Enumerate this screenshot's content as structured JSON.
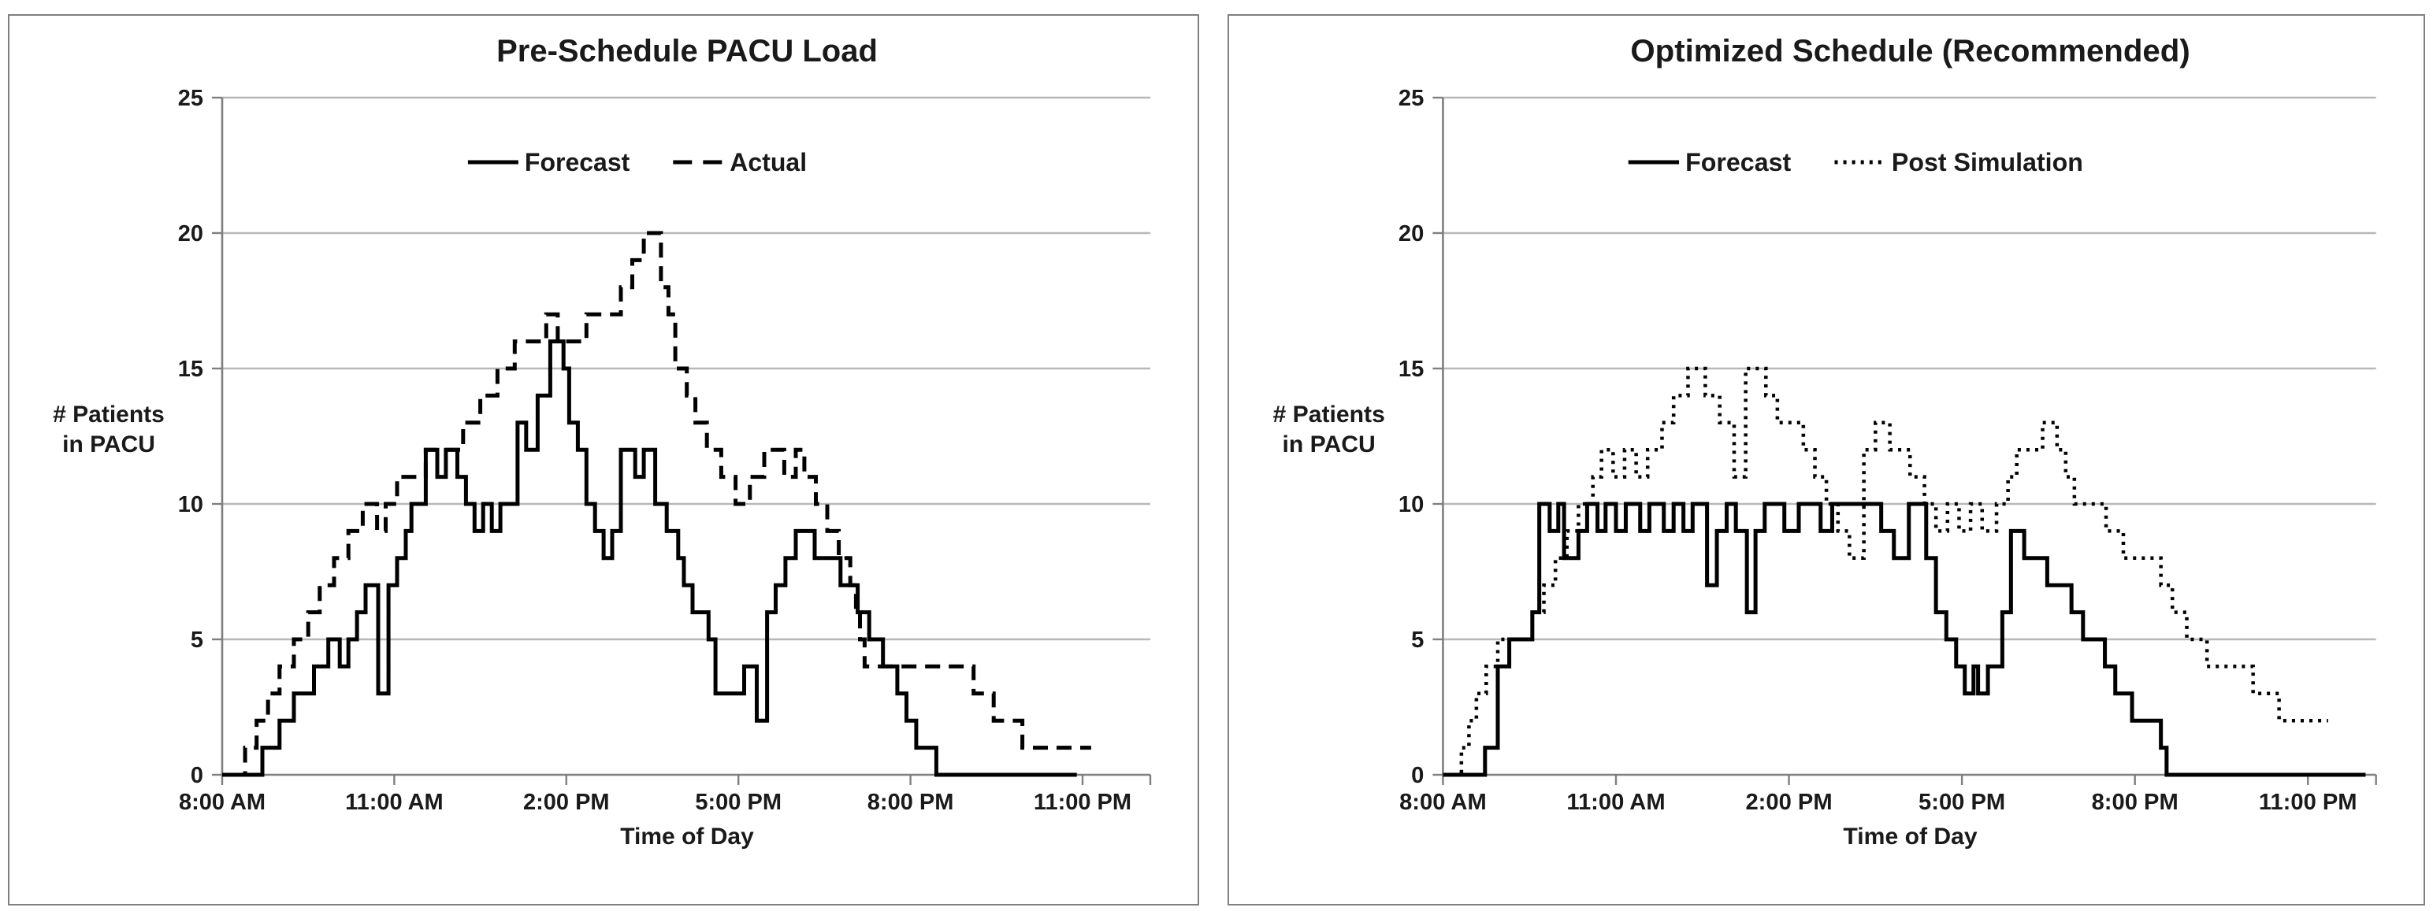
{
  "page": {
    "background": "#ffffff"
  },
  "colors": {
    "series_line": "#000000",
    "gridline": "#b8b8b8",
    "axis": "#7f7f7f",
    "text": "#1a1a1a",
    "panel_border": "#7f7f7f",
    "background": "#ffffff"
  },
  "chart_data": [
    {
      "type": "line",
      "title": "Pre-Schedule PACU Load",
      "ylabel_lines": [
        "# Patients",
        "in PACU"
      ],
      "xlabel": "Time of Day",
      "ylim": [
        0,
        25
      ],
      "y_ticks": [
        0,
        5,
        10,
        15,
        20,
        25
      ],
      "x_range_hours": [
        8,
        24.2
      ],
      "x_ticks": [
        {
          "hour": 8,
          "label": "8:00 AM"
        },
        {
          "hour": 11,
          "label": "11:00 AM"
        },
        {
          "hour": 14,
          "label": "2:00 PM"
        },
        {
          "hour": 17,
          "label": "5:00 PM"
        },
        {
          "hour": 20,
          "label": "8:00 PM"
        },
        {
          "hour": 23,
          "label": "11:00 PM"
        }
      ],
      "grid": true,
      "legend_position": "top-center",
      "series": [
        {
          "name": "Forecast",
          "style": "solid",
          "points": [
            [
              8,
              0
            ],
            [
              8.7,
              1
            ],
            [
              9.0,
              2
            ],
            [
              9.25,
              3
            ],
            [
              9.6,
              4
            ],
            [
              9.85,
              5
            ],
            [
              10.05,
              4
            ],
            [
              10.2,
              5
            ],
            [
              10.35,
              6
            ],
            [
              10.5,
              7
            ],
            [
              10.72,
              3
            ],
            [
              10.9,
              7
            ],
            [
              11.05,
              8
            ],
            [
              11.2,
              9
            ],
            [
              11.3,
              10
            ],
            [
              11.55,
              12
            ],
            [
              11.75,
              11
            ],
            [
              11.9,
              12
            ],
            [
              12.1,
              11
            ],
            [
              12.25,
              10
            ],
            [
              12.4,
              9
            ],
            [
              12.55,
              10
            ],
            [
              12.7,
              9
            ],
            [
              12.85,
              10
            ],
            [
              13.15,
              13
            ],
            [
              13.3,
              12
            ],
            [
              13.5,
              14
            ],
            [
              13.72,
              16
            ],
            [
              13.95,
              15
            ],
            [
              14.05,
              13
            ],
            [
              14.2,
              12
            ],
            [
              14.35,
              10
            ],
            [
              14.5,
              9
            ],
            [
              14.65,
              8
            ],
            [
              14.8,
              9
            ],
            [
              14.95,
              12
            ],
            [
              15.2,
              11
            ],
            [
              15.35,
              12
            ],
            [
              15.55,
              10
            ],
            [
              15.75,
              9
            ],
            [
              15.95,
              8
            ],
            [
              16.05,
              7
            ],
            [
              16.2,
              6
            ],
            [
              16.48,
              5
            ],
            [
              16.6,
              3
            ],
            [
              17.1,
              4
            ],
            [
              17.32,
              2
            ],
            [
              17.5,
              6
            ],
            [
              17.65,
              7
            ],
            [
              17.82,
              8
            ],
            [
              18.0,
              9
            ],
            [
              18.33,
              8
            ],
            [
              18.78,
              7
            ],
            [
              19.08,
              6
            ],
            [
              19.28,
              5
            ],
            [
              19.52,
              4
            ],
            [
              19.77,
              3
            ],
            [
              19.93,
              2
            ],
            [
              20.1,
              1
            ],
            [
              20.45,
              0
            ],
            [
              22.9,
              0
            ]
          ]
        },
        {
          "name": "Actual",
          "style": "dashed",
          "points": [
            [
              8.2,
              0
            ],
            [
              8.4,
              1
            ],
            [
              8.6,
              2
            ],
            [
              8.8,
              3
            ],
            [
              9.0,
              4
            ],
            [
              9.25,
              5
            ],
            [
              9.5,
              6
            ],
            [
              9.7,
              7
            ],
            [
              9.95,
              8
            ],
            [
              10.2,
              9
            ],
            [
              10.45,
              10
            ],
            [
              10.7,
              9
            ],
            [
              10.85,
              10
            ],
            [
              11.05,
              11
            ],
            [
              11.4,
              11
            ],
            [
              11.55,
              12
            ],
            [
              11.95,
              12
            ],
            [
              12.2,
              13
            ],
            [
              12.5,
              14
            ],
            [
              12.8,
              15
            ],
            [
              13.1,
              16
            ],
            [
              13.45,
              16
            ],
            [
              13.65,
              17
            ],
            [
              13.85,
              16
            ],
            [
              14.15,
              16
            ],
            [
              14.35,
              17
            ],
            [
              14.7,
              17
            ],
            [
              14.95,
              18
            ],
            [
              15.15,
              19
            ],
            [
              15.35,
              20
            ],
            [
              15.55,
              20
            ],
            [
              15.65,
              18
            ],
            [
              15.78,
              17
            ],
            [
              15.9,
              15
            ],
            [
              16.1,
              14
            ],
            [
              16.25,
              13
            ],
            [
              16.45,
              12
            ],
            [
              16.7,
              11
            ],
            [
              16.95,
              10
            ],
            [
              17.2,
              11
            ],
            [
              17.45,
              12
            ],
            [
              17.8,
              11
            ],
            [
              18.0,
              12
            ],
            [
              18.15,
              11
            ],
            [
              18.35,
              10
            ],
            [
              18.55,
              9
            ],
            [
              18.75,
              8
            ],
            [
              18.95,
              7
            ],
            [
              19.05,
              6
            ],
            [
              19.12,
              5
            ],
            [
              19.2,
              4
            ],
            [
              20.9,
              4
            ],
            [
              21.1,
              3
            ],
            [
              21.45,
              2
            ],
            [
              21.95,
              1
            ],
            [
              23.15,
              1
            ]
          ]
        }
      ]
    },
    {
      "type": "line",
      "title": "Optimized Schedule (Recommended)",
      "ylabel_lines": [
        "# Patients",
        "in PACU"
      ],
      "xlabel": "Time of  Day",
      "ylim": [
        0,
        25
      ],
      "y_ticks": [
        0,
        5,
        10,
        15,
        20,
        25
      ],
      "x_range_hours": [
        8,
        24.2
      ],
      "x_ticks": [
        {
          "hour": 8,
          "label": "8:00 AM"
        },
        {
          "hour": 11,
          "label": "11:00 AM"
        },
        {
          "hour": 14,
          "label": "2:00 PM"
        },
        {
          "hour": 17,
          "label": "5:00 PM"
        },
        {
          "hour": 20,
          "label": "8:00 PM"
        },
        {
          "hour": 23,
          "label": "11:00 PM"
        }
      ],
      "grid": true,
      "legend_position": "top-center",
      "series": [
        {
          "name": "Forecast",
          "style": "solid",
          "points": [
            [
              8,
              0
            ],
            [
              8.73,
              1
            ],
            [
              8.95,
              4
            ],
            [
              9.15,
              5
            ],
            [
              9.55,
              6
            ],
            [
              9.67,
              10
            ],
            [
              9.85,
              9
            ],
            [
              10.0,
              10
            ],
            [
              10.1,
              8
            ],
            [
              10.35,
              9
            ],
            [
              10.5,
              10
            ],
            [
              10.68,
              9
            ],
            [
              10.82,
              10
            ],
            [
              11.0,
              9
            ],
            [
              11.17,
              10
            ],
            [
              11.42,
              9
            ],
            [
              11.58,
              10
            ],
            [
              11.83,
              9
            ],
            [
              12.0,
              10
            ],
            [
              12.17,
              9
            ],
            [
              12.33,
              10
            ],
            [
              12.58,
              7
            ],
            [
              12.75,
              9
            ],
            [
              12.92,
              10
            ],
            [
              13.08,
              9
            ],
            [
              13.27,
              6
            ],
            [
              13.42,
              9
            ],
            [
              13.58,
              10
            ],
            [
              13.92,
              9
            ],
            [
              14.17,
              10
            ],
            [
              14.55,
              9
            ],
            [
              14.75,
              10
            ],
            [
              15.6,
              9
            ],
            [
              15.82,
              8
            ],
            [
              16.08,
              10
            ],
            [
              16.38,
              8
            ],
            [
              16.55,
              6
            ],
            [
              16.73,
              5
            ],
            [
              16.9,
              4
            ],
            [
              17.05,
              3
            ],
            [
              17.2,
              4
            ],
            [
              17.28,
              3
            ],
            [
              17.45,
              4
            ],
            [
              17.7,
              6
            ],
            [
              17.85,
              9
            ],
            [
              18.08,
              8
            ],
            [
              18.48,
              7
            ],
            [
              18.9,
              6
            ],
            [
              19.1,
              5
            ],
            [
              19.48,
              4
            ],
            [
              19.66,
              3
            ],
            [
              19.95,
              2
            ],
            [
              20.45,
              1
            ],
            [
              20.55,
              0
            ],
            [
              24.0,
              0
            ]
          ]
        },
        {
          "name": "Post Simulation",
          "style": "dotted",
          "points": [
            [
              8.2,
              0
            ],
            [
              8.32,
              1
            ],
            [
              8.45,
              2
            ],
            [
              8.58,
              3
            ],
            [
              8.75,
              4
            ],
            [
              8.95,
              5
            ],
            [
              9.35,
              5
            ],
            [
              9.55,
              6
            ],
            [
              9.75,
              7
            ],
            [
              9.95,
              8
            ],
            [
              10.15,
              9
            ],
            [
              10.35,
              10
            ],
            [
              10.6,
              11
            ],
            [
              10.75,
              12
            ],
            [
              10.95,
              11
            ],
            [
              11.15,
              12
            ],
            [
              11.35,
              11
            ],
            [
              11.55,
              12
            ],
            [
              11.8,
              13
            ],
            [
              12.0,
              14
            ],
            [
              12.25,
              15
            ],
            [
              12.55,
              14
            ],
            [
              12.8,
              13
            ],
            [
              13.05,
              11
            ],
            [
              13.25,
              15
            ],
            [
              13.6,
              14
            ],
            [
              13.8,
              13
            ],
            [
              14.1,
              13
            ],
            [
              14.25,
              12
            ],
            [
              14.45,
              11
            ],
            [
              14.65,
              10
            ],
            [
              14.85,
              9
            ],
            [
              15.05,
              8
            ],
            [
              15.3,
              12
            ],
            [
              15.5,
              13
            ],
            [
              15.75,
              12
            ],
            [
              16.1,
              11
            ],
            [
              16.35,
              10
            ],
            [
              16.55,
              9
            ],
            [
              16.75,
              10
            ],
            [
              16.95,
              9
            ],
            [
              17.15,
              10
            ],
            [
              17.35,
              9
            ],
            [
              17.6,
              10
            ],
            [
              17.8,
              11
            ],
            [
              17.95,
              12
            ],
            [
              18.2,
              12
            ],
            [
              18.4,
              13
            ],
            [
              18.65,
              12
            ],
            [
              18.8,
              11
            ],
            [
              18.95,
              10
            ],
            [
              19.5,
              9
            ],
            [
              19.8,
              8
            ],
            [
              20.45,
              7
            ],
            [
              20.65,
              6
            ],
            [
              20.9,
              5
            ],
            [
              21.25,
              4
            ],
            [
              22.05,
              3
            ],
            [
              22.5,
              2
            ],
            [
              23.35,
              2
            ]
          ]
        }
      ]
    }
  ]
}
